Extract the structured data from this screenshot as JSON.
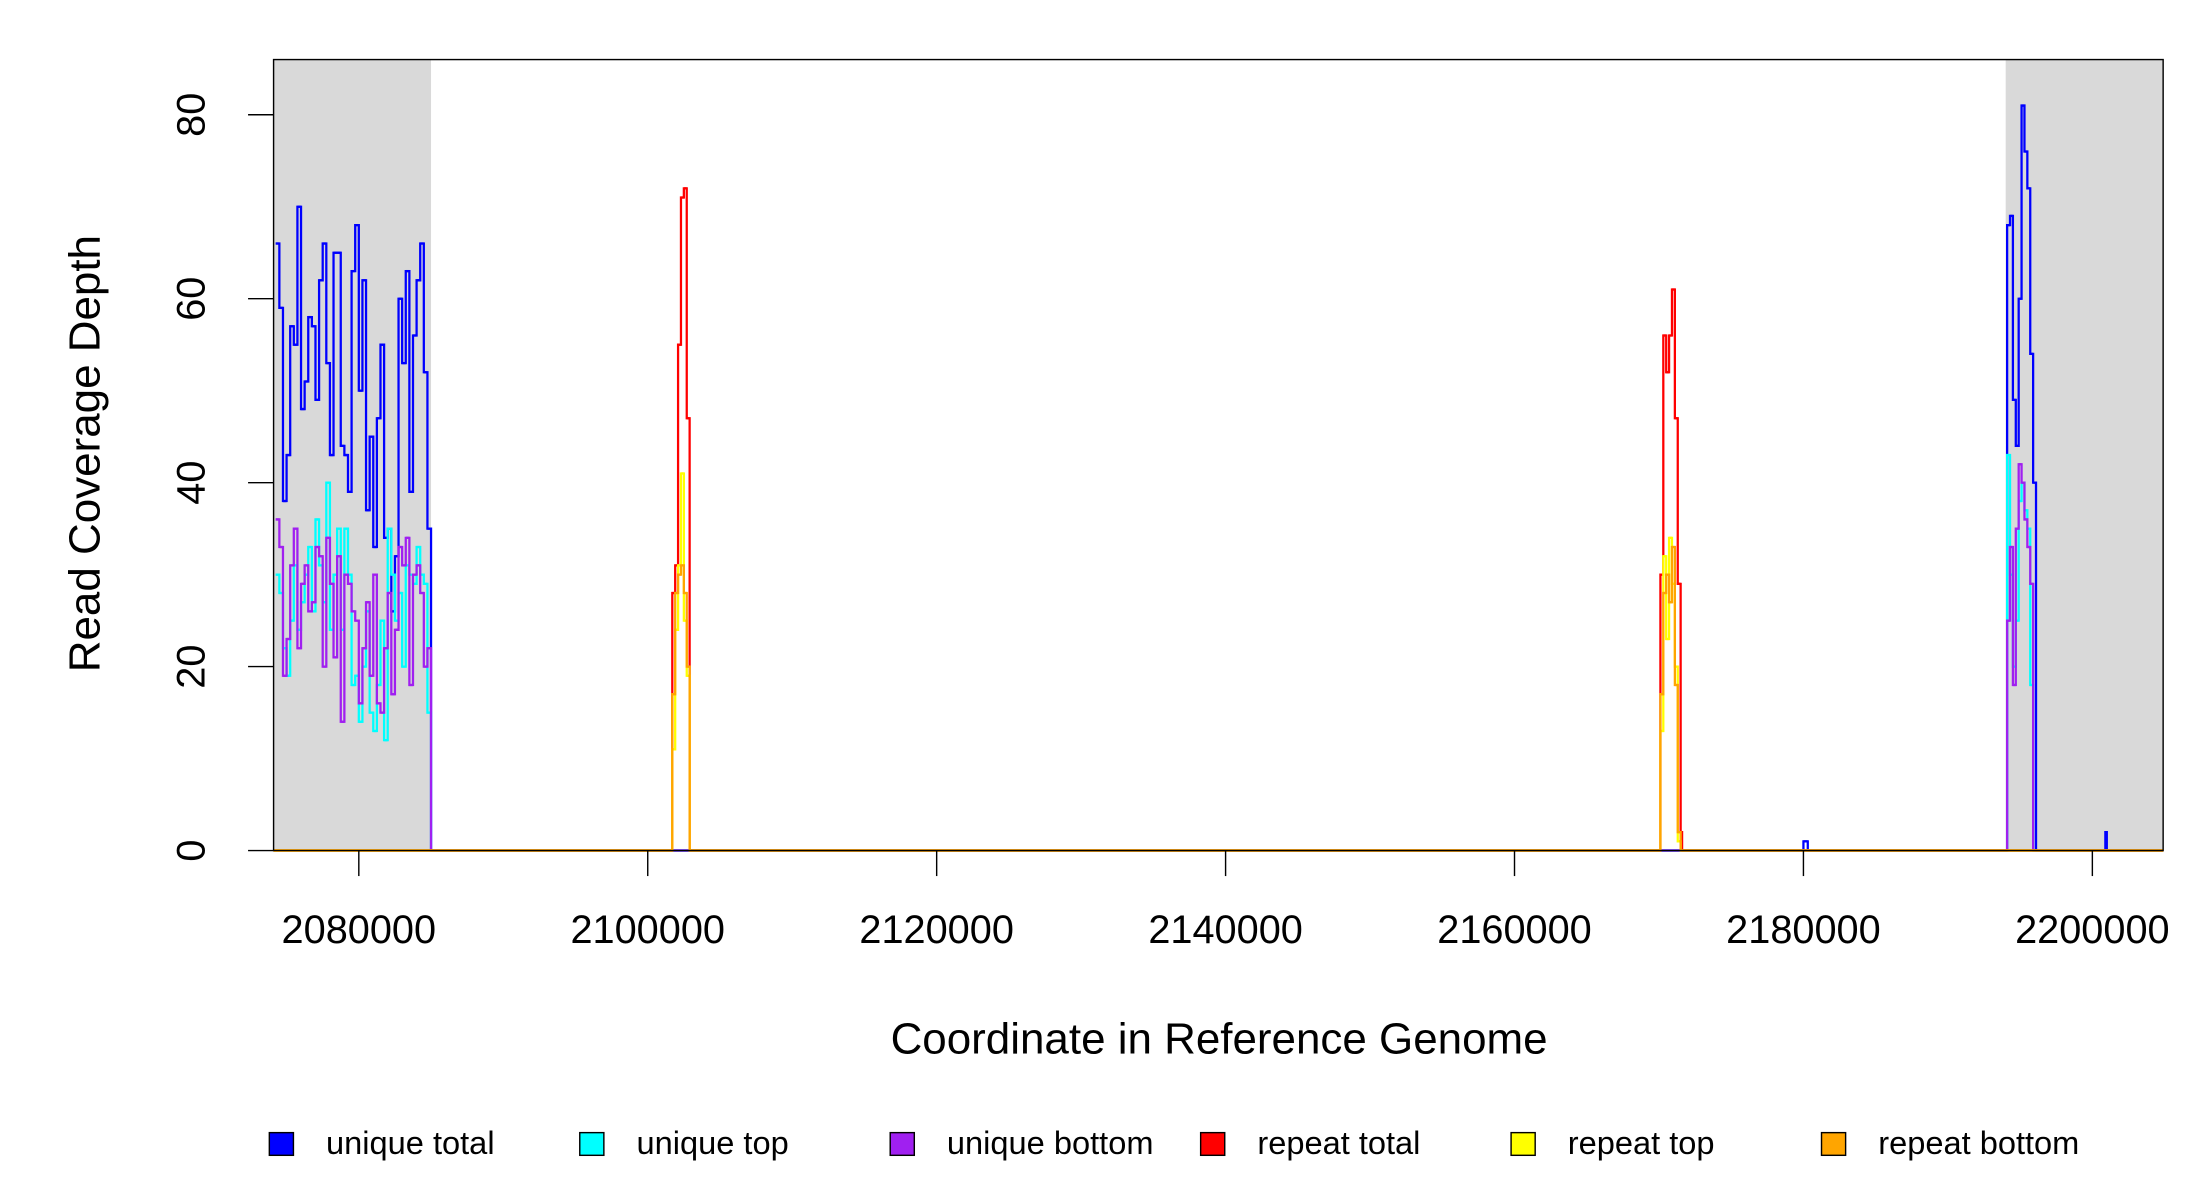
{
  "chart_data": {
    "type": "step",
    "xlabel": "Coordinate in Reference Genome",
    "ylabel": "Read Coverage Depth",
    "xlim": [
      2074100,
      2204900
    ],
    "ylim": [
      0,
      86
    ],
    "xticks": [
      2080000,
      2100000,
      2120000,
      2140000,
      2160000,
      2180000,
      2200000
    ],
    "yticks": [
      0,
      20,
      40,
      60,
      80
    ],
    "shaded_regions": [
      [
        2074100,
        2085000
      ],
      [
        2194000,
        2204900
      ]
    ],
    "shade_color": "#d9d9d9",
    "legend": "bottom",
    "series": [
      {
        "name": "unique total",
        "color": "#0000ff",
        "x": [
          2074250,
          2074500,
          2074750,
          2075000,
          2075250,
          2075500,
          2075750,
          2076000,
          2076250,
          2076500,
          2076750,
          2077000,
          2077250,
          2077500,
          2077750,
          2078000,
          2078250,
          2078500,
          2078750,
          2079000,
          2079250,
          2079500,
          2079750,
          2080000,
          2080250,
          2080500,
          2080750,
          2081000,
          2081250,
          2081500,
          2081750,
          2082000,
          2082250,
          2082500,
          2082750,
          2083000,
          2083250,
          2083500,
          2083750,
          2084000,
          2084250,
          2084500,
          2084750,
          2085000,
          2180000,
          2180300,
          2194100,
          2194300,
          2194500,
          2194700,
          2194900,
          2195100,
          2195300,
          2195500,
          2195700,
          2195900,
          2196100,
          2200900,
          2201000
        ],
        "values": [
          66,
          59,
          38,
          43,
          57,
          55,
          70,
          48,
          51,
          58,
          57,
          49,
          62,
          66,
          53,
          43,
          65,
          65,
          44,
          43,
          39,
          63,
          68,
          50,
          62,
          37,
          45,
          33,
          47,
          55,
          34,
          35,
          26,
          32,
          60,
          53,
          63,
          39,
          56,
          62,
          66,
          52,
          35,
          0,
          1,
          0,
          68,
          69,
          49,
          44,
          60,
          81,
          76,
          72,
          54,
          40,
          0,
          2,
          0
        ]
      },
      {
        "name": "unique top",
        "color": "#00ffff",
        "x": [
          2074250,
          2074500,
          2074750,
          2075000,
          2075250,
          2075500,
          2075750,
          2076000,
          2076250,
          2076500,
          2076750,
          2077000,
          2077250,
          2077500,
          2077750,
          2078000,
          2078250,
          2078500,
          2078750,
          2079000,
          2079250,
          2079500,
          2079750,
          2080000,
          2080250,
          2080500,
          2080750,
          2081000,
          2081250,
          2081500,
          2081750,
          2082000,
          2082250,
          2082500,
          2082750,
          2083000,
          2083250,
          2083500,
          2083750,
          2084000,
          2084250,
          2084500,
          2084750,
          2085000,
          2194100,
          2194300,
          2194500,
          2194700,
          2194900,
          2195100,
          2195300,
          2195500,
          2195700,
          2195900
        ],
        "values": [
          30,
          28,
          22,
          19,
          25,
          31,
          24,
          27,
          30,
          33,
          26,
          36,
          31,
          27,
          40,
          24,
          30,
          35,
          24,
          35,
          30,
          18,
          19,
          14,
          20,
          26,
          15,
          13,
          18,
          25,
          12,
          35,
          30,
          25,
          28,
          20,
          31,
          30,
          29,
          33,
          30,
          29,
          15,
          0,
          43,
          30,
          20,
          25,
          38,
          40,
          37,
          35,
          18,
          0
        ]
      },
      {
        "name": "unique bottom",
        "color": "#a020f0",
        "x": [
          2074250,
          2074500,
          2074750,
          2075000,
          2075250,
          2075500,
          2075750,
          2076000,
          2076250,
          2076500,
          2076750,
          2077000,
          2077250,
          2077500,
          2077750,
          2078000,
          2078250,
          2078500,
          2078750,
          2079000,
          2079250,
          2079500,
          2079750,
          2080000,
          2080250,
          2080500,
          2080750,
          2081000,
          2081250,
          2081500,
          2081750,
          2082000,
          2082250,
          2082500,
          2082750,
          2083000,
          2083250,
          2083500,
          2083750,
          2084000,
          2084250,
          2084500,
          2084750,
          2085000,
          2194100,
          2194300,
          2194500,
          2194700,
          2194900,
          2195100,
          2195300,
          2195500,
          2195700,
          2195900
        ],
        "values": [
          36,
          33,
          19,
          23,
          31,
          35,
          22,
          29,
          31,
          26,
          27,
          33,
          32,
          20,
          34,
          29,
          21,
          32,
          14,
          30,
          29,
          26,
          25,
          16,
          22,
          27,
          19,
          30,
          16,
          15,
          22,
          28,
          17,
          24,
          33,
          31,
          34,
          18,
          30,
          31,
          28,
          20,
          22,
          0,
          25,
          33,
          18,
          35,
          42,
          40,
          36,
          33,
          29,
          0
        ]
      },
      {
        "name": "repeat total",
        "color": "#ff0000",
        "x": [
          2074100,
          2101700,
          2101900,
          2102100,
          2102300,
          2102500,
          2102700,
          2102900,
          2170100,
          2170300,
          2170500,
          2170700,
          2170900,
          2171100,
          2171300,
          2171500,
          2171600
        ],
        "values": [
          0,
          28,
          31,
          55,
          71,
          72,
          47,
          0,
          30,
          56,
          52,
          56,
          61,
          47,
          29,
          2,
          0
        ]
      },
      {
        "name": "repeat top",
        "color": "#ffff00",
        "x": [
          2074100,
          2101700,
          2101900,
          2102100,
          2102300,
          2102500,
          2102700,
          2102900,
          2170100,
          2170300,
          2170500,
          2170700,
          2170900,
          2171100,
          2171300,
          2171500
        ],
        "values": [
          0,
          11,
          24,
          31,
          41,
          25,
          19,
          0,
          13,
          32,
          23,
          34,
          29,
          20,
          1,
          0
        ]
      },
      {
        "name": "repeat bottom",
        "color": "#ffa500",
        "x": [
          2074100,
          2101700,
          2101900,
          2102100,
          2102300,
          2102500,
          2102700,
          2102900,
          2170100,
          2170300,
          2170500,
          2170700,
          2170900,
          2171100,
          2171300,
          2171500
        ],
        "values": [
          0,
          17,
          28,
          30,
          31,
          28,
          20,
          0,
          17,
          28,
          30,
          27,
          33,
          18,
          2,
          0
        ]
      }
    ]
  }
}
